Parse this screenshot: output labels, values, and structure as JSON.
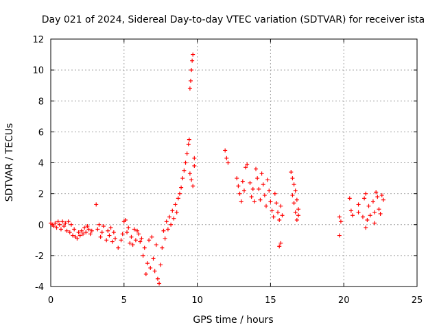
{
  "chart_data": {
    "type": "scatter",
    "title": "Day 021 of 2024, Sidereal Day-to-day VTEC variation (SDTVAR) for receiver ista",
    "xlabel": "GPS time / hours",
    "ylabel": "SDTVAR / TECUs",
    "xlim": [
      0,
      25
    ],
    "ylim": [
      -4,
      12
    ],
    "xticks": [
      0,
      5,
      10,
      15,
      20,
      25
    ],
    "yticks": [
      -4,
      -2,
      0,
      2,
      4,
      6,
      8,
      10,
      12
    ],
    "grid": true,
    "marker": "plus",
    "color": "#ff0000",
    "series": [
      {
        "name": "SDTVAR",
        "points": [
          [
            0.0,
            0.1
          ],
          [
            0.1,
            0.0
          ],
          [
            0.2,
            -0.1
          ],
          [
            0.3,
            0.1
          ],
          [
            0.4,
            -0.2
          ],
          [
            0.5,
            0.2
          ],
          [
            0.6,
            0.0
          ],
          [
            0.7,
            -0.3
          ],
          [
            0.8,
            0.2
          ],
          [
            0.9,
            -0.1
          ],
          [
            1.0,
            0.1
          ],
          [
            1.1,
            -0.4
          ],
          [
            1.2,
            0.2
          ],
          [
            1.3,
            -0.5
          ],
          [
            1.4,
            0.0
          ],
          [
            1.5,
            -0.7
          ],
          [
            1.6,
            -0.3
          ],
          [
            1.7,
            -0.8
          ],
          [
            1.8,
            -0.9
          ],
          [
            1.9,
            -0.5
          ],
          [
            2.0,
            -0.7
          ],
          [
            2.1,
            -0.4
          ],
          [
            2.2,
            -0.6
          ],
          [
            2.3,
            -0.2
          ],
          [
            2.4,
            -0.5
          ],
          [
            2.5,
            -0.1
          ],
          [
            2.6,
            -0.3
          ],
          [
            2.7,
            -0.6
          ],
          [
            2.8,
            -0.4
          ],
          [
            3.1,
            1.3
          ],
          [
            3.2,
            -0.3
          ],
          [
            3.3,
            0.0
          ],
          [
            3.4,
            -0.8
          ],
          [
            3.5,
            -0.5
          ],
          [
            3.6,
            -0.1
          ],
          [
            3.8,
            -1.0
          ],
          [
            3.9,
            -0.4
          ],
          [
            4.0,
            -0.7
          ],
          [
            4.1,
            -0.2
          ],
          [
            4.2,
            -1.1
          ],
          [
            4.3,
            -0.5
          ],
          [
            4.4,
            -0.9
          ],
          [
            4.6,
            -1.5
          ],
          [
            4.8,
            -1.0
          ],
          [
            4.9,
            -0.6
          ],
          [
            5.0,
            0.2
          ],
          [
            5.1,
            0.3
          ],
          [
            5.2,
            -0.5
          ],
          [
            5.3,
            -0.2
          ],
          [
            5.4,
            -1.2
          ],
          [
            5.5,
            -0.8
          ],
          [
            5.6,
            -1.3
          ],
          [
            5.7,
            -0.3
          ],
          [
            5.8,
            -1.0
          ],
          [
            5.9,
            -0.4
          ],
          [
            6.0,
            -0.6
          ],
          [
            6.1,
            -1.1
          ],
          [
            6.2,
            -0.9
          ],
          [
            6.3,
            -2.0
          ],
          [
            6.4,
            -1.5
          ],
          [
            6.5,
            -3.2
          ],
          [
            6.6,
            -2.5
          ],
          [
            6.7,
            -1.0
          ],
          [
            6.8,
            -2.8
          ],
          [
            6.9,
            -0.8
          ],
          [
            7.0,
            -2.2
          ],
          [
            7.1,
            -3.0
          ],
          [
            7.2,
            -1.3
          ],
          [
            7.3,
            -3.5
          ],
          [
            7.4,
            -3.8
          ],
          [
            7.5,
            -2.6
          ],
          [
            7.6,
            -1.5
          ],
          [
            7.7,
            -0.4
          ],
          [
            7.8,
            -0.9
          ],
          [
            7.9,
            0.2
          ],
          [
            8.0,
            -0.3
          ],
          [
            8.1,
            0.5
          ],
          [
            8.2,
            0.0
          ],
          [
            8.3,
            0.9
          ],
          [
            8.4,
            0.4
          ],
          [
            8.5,
            1.3
          ],
          [
            8.6,
            0.8
          ],
          [
            8.7,
            1.7
          ],
          [
            8.8,
            2.0
          ],
          [
            8.9,
            2.4
          ],
          [
            9.0,
            3.0
          ],
          [
            9.1,
            3.5
          ],
          [
            9.2,
            4.0
          ],
          [
            9.3,
            4.6
          ],
          [
            9.4,
            5.2
          ],
          [
            9.45,
            5.5
          ],
          [
            9.5,
            8.8
          ],
          [
            9.55,
            9.3
          ],
          [
            9.6,
            10.0
          ],
          [
            9.65,
            10.6
          ],
          [
            9.7,
            11.0
          ],
          [
            9.5,
            3.3
          ],
          [
            9.6,
            2.9
          ],
          [
            9.7,
            2.5
          ],
          [
            9.8,
            3.8
          ],
          [
            9.8,
            4.3
          ],
          [
            11.9,
            4.8
          ],
          [
            12.0,
            4.3
          ],
          [
            12.1,
            4.0
          ],
          [
            12.7,
            3.0
          ],
          [
            12.8,
            2.5
          ],
          [
            12.9,
            2.0
          ],
          [
            13.0,
            1.5
          ],
          [
            13.1,
            2.8
          ],
          [
            13.2,
            2.2
          ],
          [
            13.3,
            3.7
          ],
          [
            13.4,
            3.9
          ],
          [
            13.6,
            2.7
          ],
          [
            13.7,
            1.8
          ],
          [
            13.8,
            2.3
          ],
          [
            13.9,
            1.5
          ],
          [
            14.0,
            3.6
          ],
          [
            14.1,
            3.0
          ],
          [
            14.2,
            2.3
          ],
          [
            14.3,
            1.6
          ],
          [
            14.4,
            3.3
          ],
          [
            14.5,
            2.6
          ],
          [
            14.6,
            1.9
          ],
          [
            14.7,
            1.2
          ],
          [
            14.8,
            2.9
          ],
          [
            14.9,
            2.2
          ],
          [
            15.0,
            1.5
          ],
          [
            15.1,
            0.9
          ],
          [
            15.2,
            0.5
          ],
          [
            15.3,
            2.0
          ],
          [
            15.4,
            1.4
          ],
          [
            15.5,
            0.8
          ],
          [
            15.6,
            0.3
          ],
          [
            15.7,
            1.2
          ],
          [
            15.6,
            -1.4
          ],
          [
            15.7,
            -1.2
          ],
          [
            15.8,
            0.6
          ],
          [
            16.4,
            3.4
          ],
          [
            16.5,
            3.0
          ],
          [
            16.6,
            2.6
          ],
          [
            16.7,
            2.2
          ],
          [
            16.8,
            1.6
          ],
          [
            16.9,
            1.0
          ],
          [
            16.5,
            1.9
          ],
          [
            16.6,
            1.4
          ],
          [
            16.7,
            0.8
          ],
          [
            16.8,
            0.3
          ],
          [
            16.9,
            0.6
          ],
          [
            19.7,
            0.5
          ],
          [
            19.7,
            -0.7
          ],
          [
            19.8,
            0.2
          ],
          [
            20.4,
            1.7
          ],
          [
            20.5,
            0.9
          ],
          [
            20.6,
            0.6
          ],
          [
            21.0,
            1.3
          ],
          [
            21.0,
            0.8
          ],
          [
            21.3,
            0.5
          ],
          [
            21.4,
            1.7
          ],
          [
            21.5,
            2.0
          ],
          [
            21.5,
            -0.2
          ],
          [
            21.6,
            0.3
          ],
          [
            21.7,
            1.2
          ],
          [
            21.8,
            0.6
          ],
          [
            22.0,
            1.5
          ],
          [
            22.1,
            0.8
          ],
          [
            22.2,
            2.1
          ],
          [
            22.3,
            1.8
          ],
          [
            22.4,
            1.0
          ],
          [
            22.5,
            0.7
          ],
          [
            22.6,
            1.9
          ],
          [
            22.7,
            1.6
          ],
          [
            22.1,
            0.1
          ]
        ]
      }
    ]
  }
}
